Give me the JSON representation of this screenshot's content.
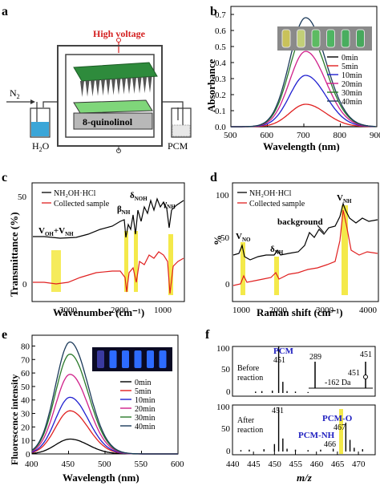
{
  "panels": {
    "a": {
      "letter": "a",
      "high_voltage": "High voltage",
      "n2": "N",
      "n2_sub": "2",
      "quinolinol": "8-quinolinol",
      "h2o": "H",
      "h2o_sub": "2",
      "h2o_o": "O",
      "pcm": "PCM"
    },
    "b": {
      "letter": "b",
      "ylabel": "Absorbance",
      "xlabel": "Wavelength (nm)",
      "xticks": [
        "500",
        "600",
        "700",
        "800",
        "900"
      ],
      "yticks": [
        "0.0",
        "0.1",
        "0.2",
        "0.3",
        "0.4",
        "0.5",
        "0.6",
        "0.7"
      ],
      "legend": [
        "0min",
        "5min",
        "10min",
        "20min",
        "30min",
        "40min"
      ],
      "vial_colors": [
        "#c9c25a",
        "#c2cf78",
        "#5dbb62",
        "#4fb563",
        "#49ad5f",
        "#47a85d"
      ]
    },
    "c": {
      "letter": "c",
      "ylabel": "Transmittance (%)",
      "xlabel": "Wavenumber (cm⁻¹)",
      "xticks": [
        "3000",
        "2000",
        "1000"
      ],
      "yticks": [
        "0",
        "50"
      ],
      "legend": [
        "NH₂OH·HCl",
        "Collected sample"
      ],
      "annotations": {
        "v_oh_nh": "V",
        "v_oh_nh_sub1": "OH",
        "v_oh_nh_plus": "+V",
        "v_oh_nh_sub2": "NH",
        "beta": "β",
        "beta_sub": "NH",
        "delta": "δ",
        "delta_sub": "NOH",
        "gamma": "γ",
        "gamma_sub": "NH"
      }
    },
    "d": {
      "letter": "d",
      "ylabel": "%",
      "xlabel": "Raman shift (cm⁻¹)",
      "xticks": [
        "1000",
        "2000",
        "3000",
        "4000"
      ],
      "yticks": [
        "0",
        "50",
        "100"
      ],
      "legend": [
        "NH₂OH·HCl",
        "Collected sample"
      ],
      "annotations": {
        "vno": "V",
        "vno_sub": "NO",
        "dnh": "δ",
        "dnh_sub": "NH",
        "background": "background",
        "vnh": "V",
        "vnh_sub": "NH"
      }
    },
    "e": {
      "letter": "e",
      "ylabel": "Fluorescence intensity",
      "xlabel": "Wavelength (nm)",
      "xticks": [
        "400",
        "450",
        "500",
        "550",
        "600"
      ],
      "yticks": [
        "0",
        "10",
        "20",
        "30",
        "40",
        "50",
        "60",
        "70",
        "80"
      ],
      "legend": [
        "0min",
        "5min",
        "10min",
        "20min",
        "30min",
        "40min"
      ]
    },
    "f": {
      "letter": "f",
      "xlabel": "m/z",
      "xticks": [
        "440",
        "445",
        "450",
        "455",
        "460",
        "465",
        "470"
      ],
      "yticks_top": [
        "0",
        "50",
        "100"
      ],
      "yticks_bottom": [
        "0",
        "50",
        "100"
      ],
      "top": {
        "pcm_label": "PCM",
        "peak451": "451",
        "before1": "Before",
        "before2": "reaction",
        "inset_289": "289",
        "inset_451": "451",
        "inset_451b": "451",
        "inset_da": "-162 Da"
      },
      "bottom": {
        "after1": "After",
        "after2": "reaction",
        "peak451": "451",
        "pcm_o": "PCM-O",
        "peak467": "467",
        "pcm_nh": "PCM-NH",
        "peak466": "466"
      }
    }
  },
  "chart_data": [
    {
      "type": "line",
      "panel": "b",
      "xlabel": "Wavelength (nm)",
      "ylabel": "Absorbance",
      "xlim": [
        500,
        900
      ],
      "ylim": [
        0,
        0.75
      ],
      "peak_x": 705,
      "series": [
        {
          "name": "0min",
          "color": "#000000",
          "peak": 0.0
        },
        {
          "name": "5min",
          "color": "#e02020",
          "peak": 0.14
        },
        {
          "name": "10min",
          "color": "#2020d0",
          "peak": 0.32
        },
        {
          "name": "20min",
          "color": "#d0208a",
          "peak": 0.47
        },
        {
          "name": "30min",
          "color": "#2a7a2a",
          "peak": 0.6
        },
        {
          "name": "40min",
          "color": "#1b3a5a",
          "peak": 0.68
        }
      ]
    },
    {
      "type": "line",
      "panel": "e",
      "xlabel": "Wavelength (nm)",
      "ylabel": "Fluorescence intensity",
      "xlim": [
        400,
        600
      ],
      "ylim": [
        0,
        88
      ],
      "peak_x": 452,
      "series": [
        {
          "name": "0min",
          "color": "#000000",
          "peak": 11
        },
        {
          "name": "5min",
          "color": "#e02020",
          "peak": 32
        },
        {
          "name": "10min",
          "color": "#2020d0",
          "peak": 42
        },
        {
          "name": "20min",
          "color": "#d0208a",
          "peak": 59
        },
        {
          "name": "30min",
          "color": "#2a7a2a",
          "peak": 74
        },
        {
          "name": "40min",
          "color": "#1b3a5a",
          "peak": 83
        }
      ]
    },
    {
      "type": "bar",
      "panel": "f-top",
      "xlabel": "m/z",
      "xlim": [
        440,
        474
      ],
      "ylim": [
        0,
        100
      ],
      "peaks": [
        [
          445.5,
          3
        ],
        [
          447,
          4
        ],
        [
          449.5,
          5
        ],
        [
          451,
          100
        ],
        [
          452,
          24
        ],
        [
          453,
          4
        ],
        [
          455,
          3
        ],
        [
          458,
          2
        ]
      ]
    },
    {
      "type": "bar",
      "panel": "f-bottom",
      "xlabel": "m/z",
      "xlim": [
        440,
        474
      ],
      "ylim": [
        0,
        100
      ],
      "peaks": [
        [
          442,
          3
        ],
        [
          444,
          4
        ],
        [
          447.5,
          5
        ],
        [
          450,
          16
        ],
        [
          451,
          95
        ],
        [
          452,
          28
        ],
        [
          453,
          6
        ],
        [
          455,
          4
        ],
        [
          458,
          3
        ],
        [
          461,
          4
        ],
        [
          464,
          6
        ],
        [
          466,
          32
        ],
        [
          467,
          62
        ],
        [
          468,
          25
        ],
        [
          469,
          8
        ],
        [
          471,
          5
        ]
      ]
    }
  ]
}
